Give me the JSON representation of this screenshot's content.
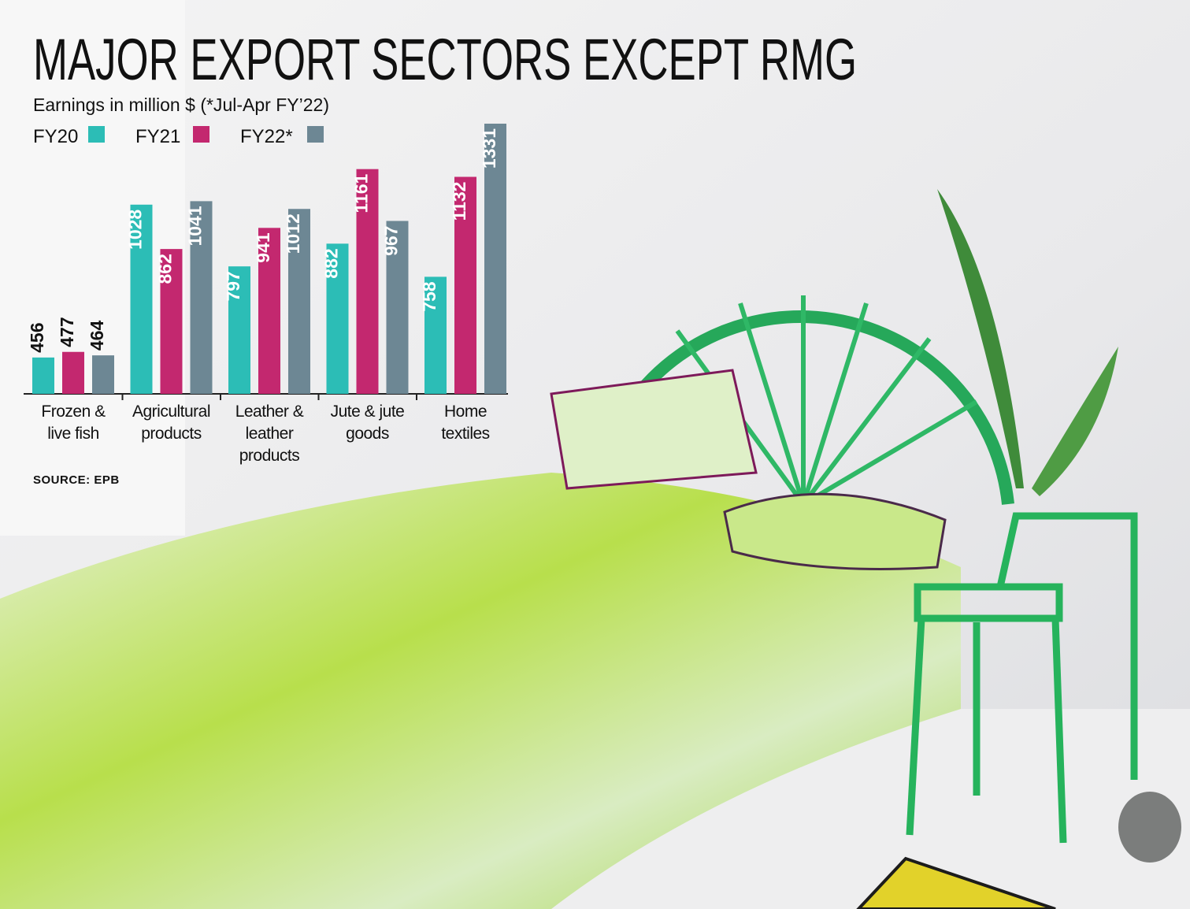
{
  "chart_data": {
    "type": "bar",
    "title": "MAJOR EXPORT SECTORS EXCEPT RMG",
    "subtitle": "Earnings in million $ (*Jul-Apr FY’22)",
    "source": "SOURCE: EPB",
    "categories": [
      "Frozen & live fish",
      "Agricultural products",
      "Leather & leather products",
      "Jute & jute goods",
      "Home textiles"
    ],
    "series": [
      {
        "name": "FY20",
        "color": "#2cbdb6",
        "values": [
          456,
          1028,
          797,
          882,
          758
        ]
      },
      {
        "name": "FY21",
        "color": "#c3286f",
        "values": [
          477,
          862,
          941,
          1161,
          1132
        ]
      },
      {
        "name": "FY22*",
        "color": "#6d8794",
        "values": [
          464,
          1041,
          1012,
          967,
          1331
        ]
      }
    ],
    "ylim": [
      320,
      1331
    ]
  }
}
